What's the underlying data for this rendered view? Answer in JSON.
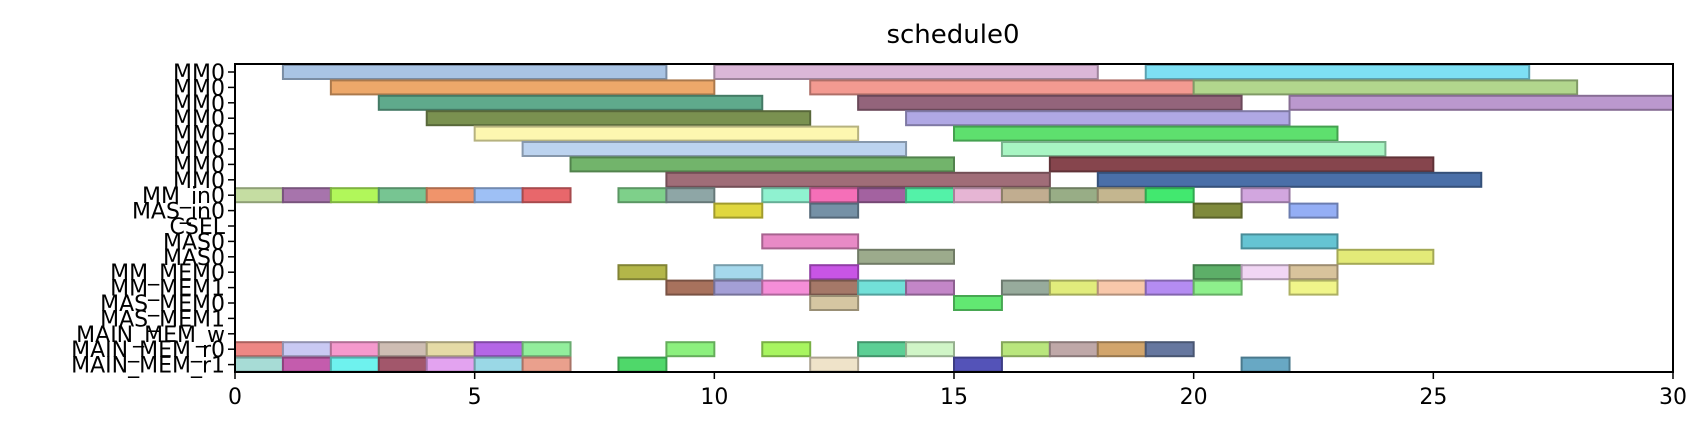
{
  "chart_data": {
    "type": "gantt",
    "title": "schedule0",
    "xlabel": "",
    "ylabel": "",
    "xlim": [
      0,
      30
    ],
    "x_ticks": [
      0,
      5,
      10,
      15,
      20,
      25,
      30
    ],
    "grid": false,
    "rows": [
      "MM0",
      "MM0",
      "MM0",
      "MM0",
      "MM0",
      "MM0",
      "MM0",
      "MM0",
      "MM_in0",
      "MAS_in0",
      "CSEL",
      "MAS0",
      "MAS0",
      "MM_MEM0",
      "MM_MEM1",
      "MAS_MEM0",
      "MAS_MEM1",
      "MAIN_MEM_w",
      "MAIN_MEM_r0",
      "MAIN_MEM_r1"
    ],
    "tasks": [
      {
        "row": 0,
        "start": 1,
        "end": 9,
        "color": "#a9c4e4"
      },
      {
        "row": 0,
        "start": 10,
        "end": 18,
        "color": "#dbb7d8"
      },
      {
        "row": 0,
        "start": 19,
        "end": 27,
        "color": "#7ee0f4"
      },
      {
        "row": 1,
        "start": 2,
        "end": 10,
        "color": "#eda86a"
      },
      {
        "row": 1,
        "start": 12,
        "end": 20,
        "color": "#f39a91"
      },
      {
        "row": 1,
        "start": 20,
        "end": 28,
        "color": "#b2d68d"
      },
      {
        "row": 2,
        "start": 3,
        "end": 11,
        "color": "#5faa8c"
      },
      {
        "row": 2,
        "start": 13,
        "end": 21,
        "color": "#93647b"
      },
      {
        "row": 2,
        "start": 22,
        "end": 30,
        "color": "#bb98ce"
      },
      {
        "row": 3,
        "start": 4,
        "end": 12,
        "color": "#7a9150"
      },
      {
        "row": 3,
        "start": 14,
        "end": 22,
        "color": "#b0a8e4"
      },
      {
        "row": 4,
        "start": 5,
        "end": 13,
        "color": "#fdf7b0"
      },
      {
        "row": 4,
        "start": 15,
        "end": 23,
        "color": "#5ee06e"
      },
      {
        "row": 5,
        "start": 6,
        "end": 14,
        "color": "#bcd3ef"
      },
      {
        "row": 5,
        "start": 16,
        "end": 24,
        "color": "#a8f5c3"
      },
      {
        "row": 6,
        "start": 7,
        "end": 15,
        "color": "#72b46b"
      },
      {
        "row": 6,
        "start": 17,
        "end": 25,
        "color": "#86454d"
      },
      {
        "row": 7,
        "start": 9,
        "end": 17,
        "color": "#a06d78"
      },
      {
        "row": 7,
        "start": 18,
        "end": 26,
        "color": "#4a6fa8"
      },
      {
        "row": 8,
        "start": 0,
        "end": 1,
        "color": "#c5dda2"
      },
      {
        "row": 8,
        "start": 1,
        "end": 2,
        "color": "#a774ac"
      },
      {
        "row": 8,
        "start": 2,
        "end": 3,
        "color": "#b1f75a"
      },
      {
        "row": 8,
        "start": 3,
        "end": 4,
        "color": "#77c592"
      },
      {
        "row": 8,
        "start": 4,
        "end": 5,
        "color": "#f0946b"
      },
      {
        "row": 8,
        "start": 5,
        "end": 6,
        "color": "#9ec0f5"
      },
      {
        "row": 8,
        "start": 6,
        "end": 7,
        "color": "#e8676b"
      },
      {
        "row": 8,
        "start": 8,
        "end": 9,
        "color": "#7ed08a"
      },
      {
        "row": 8,
        "start": 9,
        "end": 10,
        "color": "#8ea6a6"
      },
      {
        "row": 8,
        "start": 11,
        "end": 12,
        "color": "#8ff2d0"
      },
      {
        "row": 8,
        "start": 12,
        "end": 13,
        "color": "#f56fb8"
      },
      {
        "row": 8,
        "start": 13,
        "end": 14,
        "color": "#a362a0"
      },
      {
        "row": 8,
        "start": 14,
        "end": 15,
        "color": "#53f2a8"
      },
      {
        "row": 8,
        "start": 15,
        "end": 16,
        "color": "#e6b5d4"
      },
      {
        "row": 8,
        "start": 16,
        "end": 17,
        "color": "#c1ad90"
      },
      {
        "row": 8,
        "start": 17,
        "end": 18,
        "color": "#98ad86"
      },
      {
        "row": 8,
        "start": 18,
        "end": 19,
        "color": "#c4b68f"
      },
      {
        "row": 8,
        "start": 19,
        "end": 20,
        "color": "#42e86f"
      },
      {
        "row": 8,
        "start": 21,
        "end": 22,
        "color": "#d2a6df"
      },
      {
        "row": 9,
        "start": 10,
        "end": 11,
        "color": "#e0d73f"
      },
      {
        "row": 9,
        "start": 12,
        "end": 13,
        "color": "#7591a6"
      },
      {
        "row": 9,
        "start": 20,
        "end": 21,
        "color": "#7f8a3c"
      },
      {
        "row": 9,
        "start": 22,
        "end": 23,
        "color": "#94aef5"
      },
      {
        "row": 11,
        "start": 11,
        "end": 13,
        "color": "#e88ac6"
      },
      {
        "row": 11,
        "start": 21,
        "end": 23,
        "color": "#65c4d3"
      },
      {
        "row": 12,
        "start": 13,
        "end": 15,
        "color": "#9cab8c"
      },
      {
        "row": 12,
        "start": 23,
        "end": 25,
        "color": "#e3ea78"
      },
      {
        "row": 13,
        "start": 8,
        "end": 9,
        "color": "#b3b649"
      },
      {
        "row": 13,
        "start": 10,
        "end": 11,
        "color": "#a5d8ec"
      },
      {
        "row": 13,
        "start": 12,
        "end": 13,
        "color": "#c855e5"
      },
      {
        "row": 13,
        "start": 20,
        "end": 21,
        "color": "#5daf68"
      },
      {
        "row": 13,
        "start": 21,
        "end": 22,
        "color": "#f1d6f4"
      },
      {
        "row": 13,
        "start": 22,
        "end": 23,
        "color": "#d8c39c"
      },
      {
        "row": 14,
        "start": 9,
        "end": 10,
        "color": "#a8725d"
      },
      {
        "row": 14,
        "start": 10,
        "end": 11,
        "color": "#a49fd6"
      },
      {
        "row": 14,
        "start": 11,
        "end": 12,
        "color": "#f58ed8"
      },
      {
        "row": 14,
        "start": 12,
        "end": 13,
        "color": "#a57868"
      },
      {
        "row": 14,
        "start": 13,
        "end": 14,
        "color": "#72e0d8"
      },
      {
        "row": 14,
        "start": 14,
        "end": 15,
        "color": "#c386c8"
      },
      {
        "row": 14,
        "start": 16,
        "end": 17,
        "color": "#97ab9c"
      },
      {
        "row": 14,
        "start": 17,
        "end": 18,
        "color": "#e1ec7c"
      },
      {
        "row": 14,
        "start": 18,
        "end": 19,
        "color": "#f8c8aa"
      },
      {
        "row": 14,
        "start": 19,
        "end": 20,
        "color": "#b48cf2"
      },
      {
        "row": 14,
        "start": 20,
        "end": 21,
        "color": "#8ef08c"
      },
      {
        "row": 14,
        "start": 22,
        "end": 23,
        "color": "#f0f58a"
      },
      {
        "row": 15,
        "start": 12,
        "end": 13,
        "color": "#d5c6a2"
      },
      {
        "row": 15,
        "start": 15,
        "end": 16,
        "color": "#62e872"
      },
      {
        "row": 18,
        "start": 0,
        "end": 1,
        "color": "#ee8784"
      },
      {
        "row": 18,
        "start": 1,
        "end": 2,
        "color": "#c9c9f3"
      },
      {
        "row": 18,
        "start": 2,
        "end": 3,
        "color": "#f599cd"
      },
      {
        "row": 18,
        "start": 3,
        "end": 4,
        "color": "#cebdb3"
      },
      {
        "row": 18,
        "start": 4,
        "end": 5,
        "color": "#e5dba6"
      },
      {
        "row": 18,
        "start": 5,
        "end": 6,
        "color": "#b466e6"
      },
      {
        "row": 18,
        "start": 6,
        "end": 7,
        "color": "#92ee9c"
      },
      {
        "row": 18,
        "start": 9,
        "end": 10,
        "color": "#8cf07e"
      },
      {
        "row": 18,
        "start": 11,
        "end": 12,
        "color": "#a8f560"
      },
      {
        "row": 18,
        "start": 13,
        "end": 14,
        "color": "#5ccf95"
      },
      {
        "row": 18,
        "start": 14,
        "end": 15,
        "color": "#d0f5c7"
      },
      {
        "row": 18,
        "start": 16,
        "end": 17,
        "color": "#b9e67d"
      },
      {
        "row": 18,
        "start": 17,
        "end": 18,
        "color": "#bfa8a8"
      },
      {
        "row": 18,
        "start": 18,
        "end": 19,
        "color": "#d2a56c"
      },
      {
        "row": 18,
        "start": 19,
        "end": 20,
        "color": "#66779f"
      },
      {
        "row": 19,
        "start": 0,
        "end": 1,
        "color": "#a7dcd6"
      },
      {
        "row": 19,
        "start": 1,
        "end": 2,
        "color": "#c45cad"
      },
      {
        "row": 19,
        "start": 2,
        "end": 3,
        "color": "#6ef2ee"
      },
      {
        "row": 19,
        "start": 3,
        "end": 4,
        "color": "#a2576b"
      },
      {
        "row": 19,
        "start": 4,
        "end": 5,
        "color": "#e3a3f0"
      },
      {
        "row": 19,
        "start": 5,
        "end": 6,
        "color": "#9ad8e6"
      },
      {
        "row": 19,
        "start": 6,
        "end": 7,
        "color": "#eaa08d"
      },
      {
        "row": 19,
        "start": 8,
        "end": 9,
        "color": "#4fd86a"
      },
      {
        "row": 19,
        "start": 12,
        "end": 13,
        "color": "#efe3c9"
      },
      {
        "row": 19,
        "start": 15,
        "end": 16,
        "color": "#5453b8"
      },
      {
        "row": 19,
        "start": 21,
        "end": 22,
        "color": "#68a8c4"
      }
    ]
  }
}
